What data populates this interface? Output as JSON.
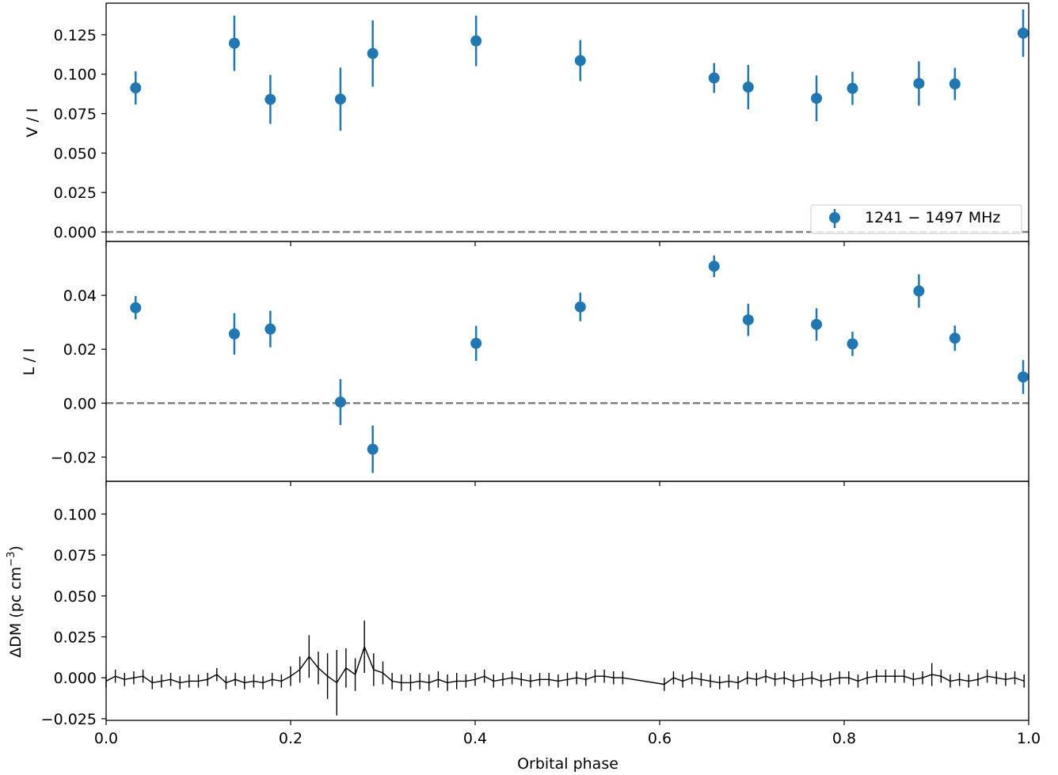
{
  "colors": {
    "series": "#1f77b4",
    "dm": "#000000",
    "zero_line": "#808080",
    "axes": "#000000"
  },
  "chart_data": [
    {
      "type": "scatter",
      "ylabel": "V / I",
      "xlim": [
        0.0,
        1.0
      ],
      "ylim": [
        -0.006,
        0.145
      ],
      "yticks": [
        "0.000",
        "0.025",
        "0.050",
        "0.075",
        "0.100",
        "0.125"
      ],
      "zero_line": true,
      "legend": {
        "position": "lower-right",
        "entries": [
          "1241 − 1497 MHz"
        ]
      },
      "series": [
        {
          "name": "1241 − 1497 MHz",
          "x": [
            0.032,
            0.139,
            0.178,
            0.254,
            0.289,
            0.401,
            0.514,
            0.659,
            0.696,
            0.77,
            0.809,
            0.881,
            0.92,
            0.994
          ],
          "y": [
            0.0913,
            0.1196,
            0.084,
            0.0842,
            0.1131,
            0.1211,
            0.1086,
            0.0976,
            0.0918,
            0.0847,
            0.091,
            0.0941,
            0.0938,
            0.126
          ],
          "yerr": [
            0.0105,
            0.0175,
            0.0155,
            0.02,
            0.021,
            0.016,
            0.013,
            0.0095,
            0.014,
            0.0145,
            0.0105,
            0.014,
            0.0102,
            0.015
          ]
        }
      ]
    },
    {
      "type": "scatter",
      "ylabel": "L / I",
      "xlim": [
        0.0,
        1.0
      ],
      "ylim": [
        -0.029,
        0.06
      ],
      "yticks": [
        "−0.02",
        "0.00",
        "0.02",
        "0.04"
      ],
      "zero_line": true,
      "series": [
        {
          "x": [
            0.032,
            0.139,
            0.178,
            0.254,
            0.289,
            0.401,
            0.514,
            0.659,
            0.696,
            0.77,
            0.809,
            0.881,
            0.92,
            0.994
          ],
          "y": [
            0.0354,
            0.0257,
            0.0275,
            0.0004,
            -0.0171,
            0.0222,
            0.0357,
            0.0508,
            0.0309,
            0.0292,
            0.022,
            0.0416,
            0.0241,
            0.0097
          ],
          "yerr": [
            0.0043,
            0.0077,
            0.0068,
            0.0085,
            0.0088,
            0.0065,
            0.0053,
            0.004,
            0.006,
            0.006,
            0.0045,
            0.0062,
            0.0047,
            0.0063
          ]
        }
      ]
    },
    {
      "type": "line",
      "ylabel": "ΔDM (pc cm",
      "ylabel_sup": "−3",
      "ylabel_close": ")",
      "xlabel": "Orbital phase",
      "xlim": [
        0.0,
        1.0
      ],
      "ylim": [
        -0.026,
        0.12
      ],
      "yticks": [
        "−0.025",
        "0.000",
        "0.025",
        "0.050",
        "0.075",
        "0.100"
      ],
      "xticks": [
        "0.0",
        "0.2",
        "0.4",
        "0.6",
        "0.8",
        "1.0"
      ],
      "series": [
        {
          "x": [
            0.0,
            0.01,
            0.02,
            0.03,
            0.04,
            0.05,
            0.06,
            0.07,
            0.08,
            0.09,
            0.1,
            0.11,
            0.12,
            0.13,
            0.14,
            0.15,
            0.16,
            0.17,
            0.18,
            0.19,
            0.2,
            0.21,
            0.22,
            0.23,
            0.24,
            0.25,
            0.26,
            0.27,
            0.28,
            0.29,
            0.3,
            0.31,
            0.32,
            0.33,
            0.34,
            0.35,
            0.36,
            0.37,
            0.38,
            0.39,
            0.4,
            0.41,
            0.42,
            0.43,
            0.44,
            0.45,
            0.46,
            0.47,
            0.48,
            0.49,
            0.5,
            0.51,
            0.52,
            0.53,
            0.54,
            0.55,
            0.56,
            0.605,
            0.615,
            0.625,
            0.635,
            0.645,
            0.655,
            0.665,
            0.675,
            0.685,
            0.695,
            0.705,
            0.715,
            0.725,
            0.735,
            0.745,
            0.755,
            0.765,
            0.775,
            0.785,
            0.795,
            0.805,
            0.815,
            0.825,
            0.835,
            0.845,
            0.855,
            0.865,
            0.875,
            0.885,
            0.895,
            0.905,
            0.915,
            0.925,
            0.935,
            0.945,
            0.955,
            0.965,
            0.975,
            0.985,
            0.995
          ],
          "y": [
            -0.002,
            0.001,
            -0.001,
            0.0,
            0.001,
            -0.003,
            -0.002,
            -0.001,
            -0.003,
            -0.002,
            -0.002,
            -0.001,
            0.002,
            -0.003,
            -0.001,
            -0.003,
            -0.002,
            -0.003,
            -0.001,
            -0.002,
            0.001,
            0.005,
            0.013,
            0.006,
            0.001,
            -0.003,
            0.006,
            0.002,
            0.019,
            0.005,
            0.003,
            -0.002,
            -0.003,
            -0.003,
            -0.002,
            -0.003,
            -0.001,
            -0.003,
            -0.002,
            -0.002,
            -0.001,
            0.001,
            -0.002,
            -0.001,
            0.0,
            -0.001,
            -0.002,
            -0.001,
            -0.001,
            -0.002,
            -0.001,
            0.0,
            -0.001,
            0.001,
            0.001,
            0.0,
            0.0,
            -0.004,
            0.0,
            -0.002,
            0.0,
            -0.001,
            -0.002,
            -0.003,
            -0.002,
            -0.003,
            0.0,
            -0.001,
            0.001,
            -0.001,
            0.0,
            -0.002,
            -0.001,
            0.0,
            -0.002,
            -0.001,
            0.0,
            0.0,
            -0.002,
            0.0,
            0.001,
            0.001,
            0.001,
            0.001,
            -0.001,
            0.0,
            0.002,
            0.001,
            -0.002,
            -0.001,
            -0.002,
            -0.001,
            0.001,
            0.0,
            -0.001,
            0.0,
            -0.002
          ],
          "yerr": [
            0.004,
            0.004,
            0.004,
            0.004,
            0.004,
            0.004,
            0.004,
            0.004,
            0.004,
            0.004,
            0.004,
            0.004,
            0.004,
            0.004,
            0.004,
            0.004,
            0.004,
            0.004,
            0.004,
            0.004,
            0.006,
            0.008,
            0.013,
            0.01,
            0.014,
            0.02,
            0.012,
            0.01,
            0.016,
            0.01,
            0.007,
            0.005,
            0.005,
            0.005,
            0.005,
            0.005,
            0.005,
            0.005,
            0.005,
            0.004,
            0.004,
            0.004,
            0.004,
            0.004,
            0.004,
            0.004,
            0.004,
            0.004,
            0.004,
            0.004,
            0.004,
            0.004,
            0.004,
            0.004,
            0.004,
            0.004,
            0.004,
            0.004,
            0.004,
            0.004,
            0.004,
            0.004,
            0.004,
            0.004,
            0.004,
            0.004,
            0.004,
            0.004,
            0.004,
            0.004,
            0.004,
            0.004,
            0.004,
            0.004,
            0.004,
            0.004,
            0.004,
            0.004,
            0.004,
            0.004,
            0.004,
            0.004,
            0.004,
            0.004,
            0.004,
            0.004,
            0.007,
            0.004,
            0.004,
            0.004,
            0.004,
            0.004,
            0.004,
            0.004,
            0.004,
            0.004,
            0.004
          ]
        }
      ]
    }
  ]
}
